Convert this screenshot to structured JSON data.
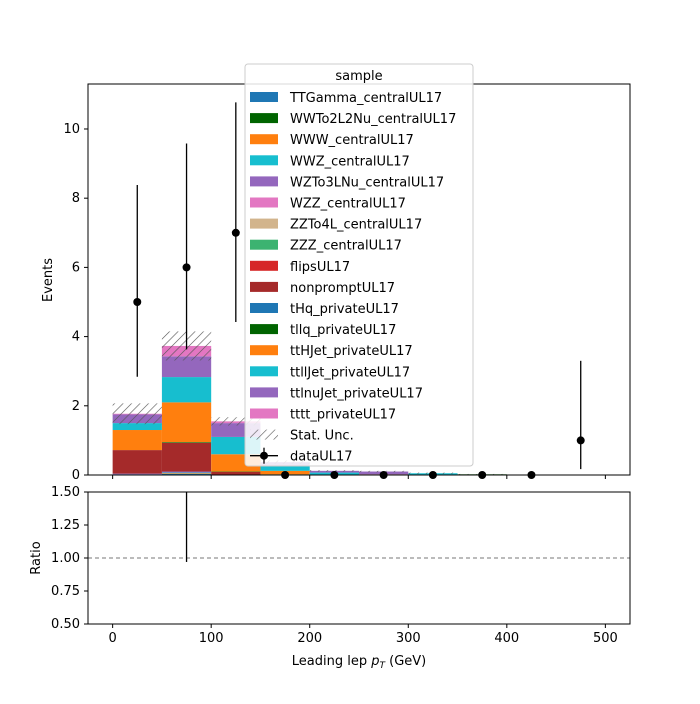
{
  "chart_data": {
    "type": "bar",
    "stacked": true,
    "xlabel": "Leading lep p_T (GeV)",
    "xlabel_main": "Leading lep ",
    "xlabel_sym": "p",
    "xlabel_sub": "T",
    "xlabel_unit": " (GeV)",
    "ylabel": "Events",
    "ratio_ylabel": "Ratio",
    "xlim": [
      -25,
      525
    ],
    "ylim": [
      0,
      11.3
    ],
    "ratio_ylim": [
      0.5,
      1.5
    ],
    "x_ticks": [
      0,
      100,
      200,
      300,
      400,
      500
    ],
    "y_ticks": [
      0,
      2,
      4,
      6,
      8,
      10
    ],
    "ratio_y_ticks": [
      "0.50",
      "0.75",
      "1.00",
      "1.25",
      "1.50"
    ],
    "ratio_reference": 1.0,
    "bin_edges": [
      0,
      50,
      100,
      150,
      200,
      250,
      300,
      350,
      400,
      450,
      500
    ],
    "legend": {
      "title": "sample",
      "placement": "upper center",
      "stat_unc_label": "Stat. Unc.",
      "data_label": "dataUL17"
    },
    "series": [
      {
        "name": "TTGamma_centralUL17",
        "color": "#1f77b4",
        "values": [
          0.02,
          0.03,
          0.01,
          0.0,
          0.0,
          0.0,
          0.0,
          0.0,
          0.0,
          0.0
        ]
      },
      {
        "name": "WWTo2L2Nu_centralUL17",
        "color": "#006400",
        "values": [
          0.0,
          0.0,
          0.0,
          0.0,
          0.0,
          0.0,
          0.0,
          0.0,
          0.0,
          0.0
        ]
      },
      {
        "name": "WWW_centralUL17",
        "color": "#ff7f0e",
        "values": [
          0.0,
          0.02,
          0.0,
          0.0,
          0.0,
          0.0,
          0.0,
          0.0,
          0.0,
          0.0
        ]
      },
      {
        "name": "WWZ_centralUL17",
        "color": "#17becf",
        "values": [
          0.0,
          0.02,
          0.0,
          0.0,
          0.0,
          0.0,
          0.0,
          0.0,
          0.0,
          0.0
        ]
      },
      {
        "name": "WZTo3LNu_centralUL17",
        "color": "#9467bd",
        "values": [
          0.02,
          0.03,
          0.0,
          0.0,
          0.0,
          0.0,
          0.0,
          0.0,
          0.0,
          0.0
        ]
      },
      {
        "name": "WZZ_centralUL17",
        "color": "#e377c2",
        "values": [
          0.0,
          0.0,
          0.0,
          0.0,
          0.0,
          0.0,
          0.0,
          0.0,
          0.0,
          0.0
        ]
      },
      {
        "name": "ZZTo4L_centralUL17",
        "color": "#d2b48c",
        "values": [
          0.0,
          0.0,
          0.0,
          0.0,
          0.0,
          0.0,
          0.0,
          0.0,
          0.0,
          0.0
        ]
      },
      {
        "name": "ZZZ_centralUL17",
        "color": "#3cb371",
        "values": [
          0.0,
          0.0,
          0.0,
          0.0,
          0.0,
          0.0,
          0.0,
          0.0,
          0.0,
          0.0
        ]
      },
      {
        "name": "flipsUL17",
        "color": "#d62728",
        "values": [
          0.0,
          0.0,
          0.0,
          0.0,
          0.0,
          0.0,
          0.0,
          0.0,
          0.0,
          0.0
        ]
      },
      {
        "name": "nonpromptUL17",
        "color": "#a52a2a",
        "values": [
          0.68,
          0.83,
          0.08,
          0.0,
          0.0,
          0.0,
          0.0,
          0.0,
          0.0,
          0.0
        ]
      },
      {
        "name": "tHq_privateUL17",
        "color": "#1f77b4",
        "values": [
          0.0,
          0.0,
          0.0,
          0.0,
          0.0,
          0.0,
          0.0,
          0.0,
          0.0,
          0.0
        ]
      },
      {
        "name": "tllq_privateUL17",
        "color": "#006400",
        "values": [
          0.0,
          0.02,
          0.01,
          0.02,
          0.0,
          0.0,
          0.0,
          0.02,
          0.0,
          0.0
        ]
      },
      {
        "name": "ttHJet_privateUL17",
        "color": "#ff7f0e",
        "values": [
          0.58,
          1.15,
          0.5,
          0.1,
          0.0,
          0.02,
          0.0,
          0.0,
          0.0,
          0.0
        ]
      },
      {
        "name": "ttllJet_privateUL17",
        "color": "#17becf",
        "values": [
          0.2,
          0.73,
          0.5,
          0.15,
          0.07,
          0.0,
          0.05,
          0.0,
          0.0,
          0.0
        ]
      },
      {
        "name": "ttlnuJet_privateUL17",
        "color": "#9467bd",
        "values": [
          0.25,
          0.6,
          0.4,
          0.1,
          0.05,
          0.08,
          0.0,
          0.0,
          0.0,
          0.0
        ]
      },
      {
        "name": "tttt_privateUL17",
        "color": "#e377c2",
        "values": [
          0.02,
          0.3,
          0.05,
          0.0,
          0.0,
          0.0,
          0.0,
          0.0,
          0.0,
          0.0
        ]
      }
    ],
    "stat_unc": [
      0.3,
      0.42,
      0.12,
      0.05,
      0.02,
      0.02,
      0.02,
      0.01,
      0.0,
      0.0
    ],
    "data": {
      "name": "dataUL17",
      "x": [
        25,
        75,
        125,
        175,
        225,
        275,
        325,
        375,
        425,
        475
      ],
      "y": [
        5,
        6,
        7,
        0,
        0,
        0,
        0,
        0,
        0,
        1
      ],
      "err": [
        [
          2.16,
          3.38
        ],
        [
          2.37,
          3.58
        ],
        [
          2.58,
          3.77
        ],
        [
          0,
          0
        ],
        [
          0,
          0
        ],
        [
          0,
          0
        ],
        [
          0,
          0
        ],
        [
          0,
          0
        ],
        [
          0,
          0
        ],
        [
          0.83,
          2.3
        ]
      ]
    },
    "ratio": {
      "x": [
        75
      ],
      "y_low": [
        0.97
      ],
      "y_high": [
        1.5
      ]
    }
  }
}
